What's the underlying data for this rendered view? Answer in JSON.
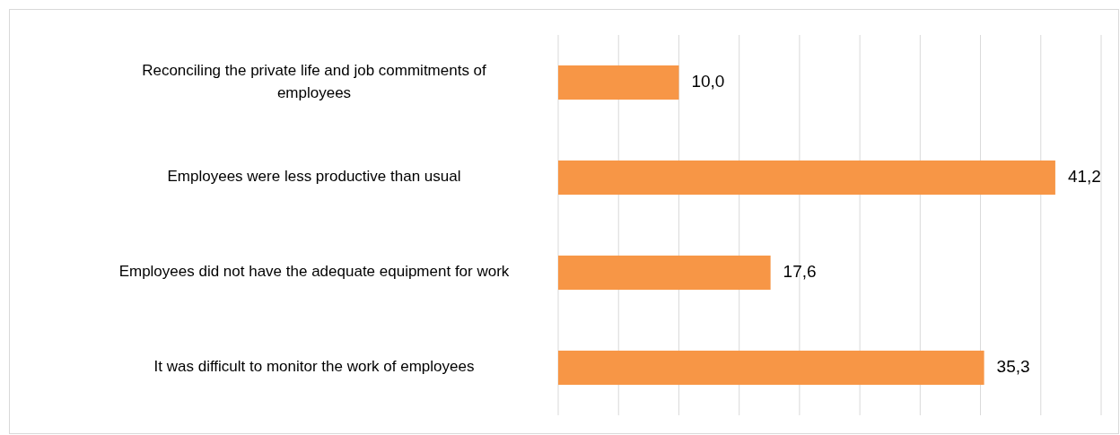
{
  "chart_data": {
    "type": "bar",
    "orientation": "horizontal",
    "categories": [
      "Reconciling the private life and job commitments of employees",
      "Employees were less productive than usual",
      "Employees did not have the adequate equipment for work",
      "It was difficult to monitor the work of employees"
    ],
    "values": [
      10.0,
      41.2,
      17.6,
      35.3
    ],
    "value_labels": [
      "10,0",
      "41,2",
      "17,6",
      "35,3"
    ],
    "color": "#f79646",
    "xlim": [
      0,
      45
    ],
    "xticks": [
      {
        "value": 0,
        "label": null
      },
      {
        "value": 5,
        "label": null
      },
      {
        "value": 10,
        "label": null
      },
      {
        "value": 15,
        "label": null
      },
      {
        "value": 20,
        "label": null
      },
      {
        "value": 25,
        "label": null
      },
      {
        "value": 30,
        "label": null
      },
      {
        "value": 35,
        "label": null
      },
      {
        "value": 40,
        "label": null
      },
      {
        "value": 45,
        "label": null
      }
    ],
    "grid": "x",
    "tick_labels": "y"
  }
}
